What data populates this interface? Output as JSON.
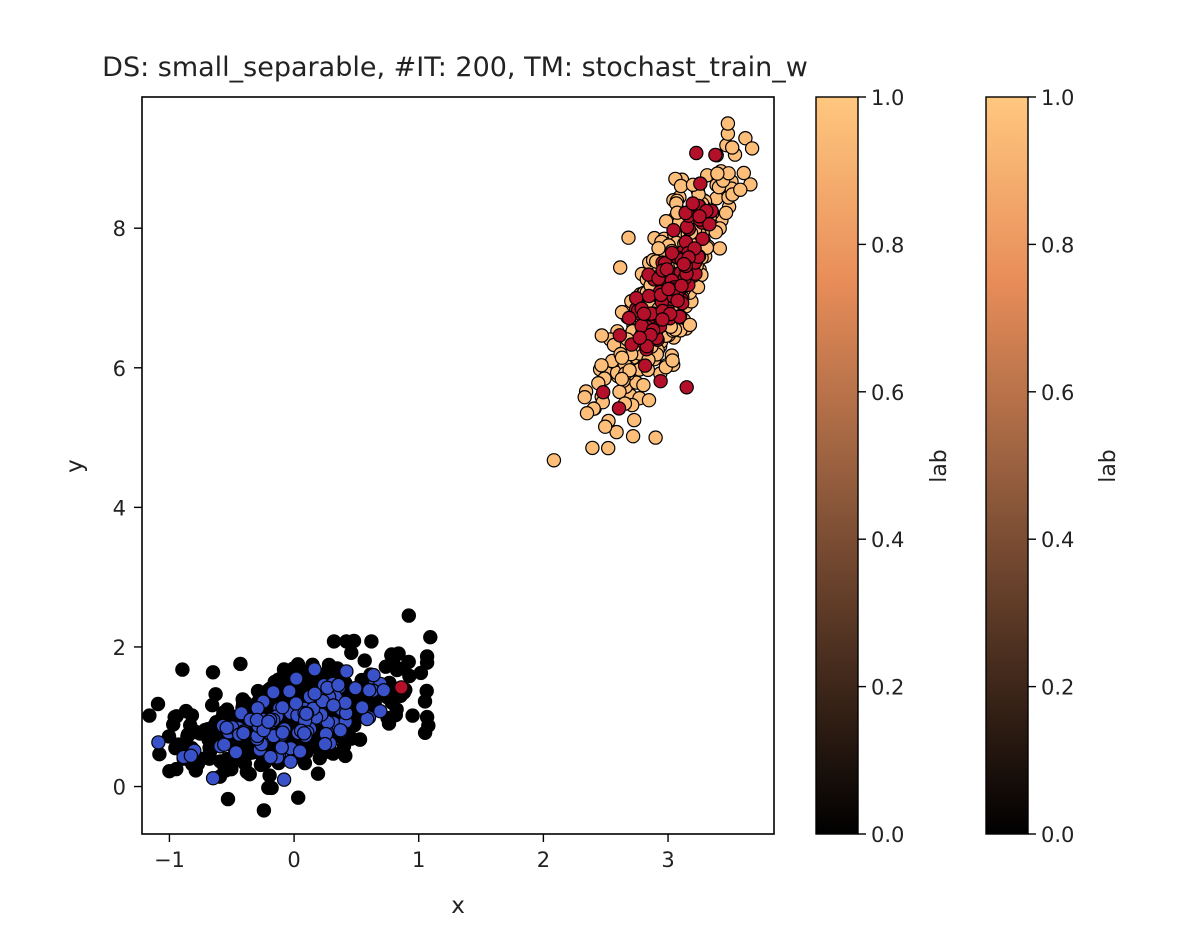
{
  "chart_data": {
    "type": "scatter",
    "title": "DS: small_separable, #IT: 200, TM: stochast_train_w",
    "xlabel": "x",
    "ylabel": "y",
    "xlim": [
      -1.22,
      3.85
    ],
    "ylim": [
      -0.68,
      9.88
    ],
    "xticks": [
      -1,
      0,
      1,
      2,
      3
    ],
    "yticks": [
      0,
      2,
      4,
      6,
      8
    ],
    "grid": false,
    "clusters": [
      {
        "role": "background",
        "color": "#000000",
        "center": [
          0.0,
          1.0
        ],
        "std": [
          0.42,
          0.38
        ],
        "corr": 0.55,
        "count": 520,
        "outliers": [
          [
            -1.0,
            0.22
          ],
          [
            -0.82,
            0.55
          ],
          [
            -0.82,
            1.02
          ],
          [
            -0.53,
            -0.18
          ],
          [
            -0.18,
            -0.02
          ],
          [
            0.92,
            2.45
          ],
          [
            1.05,
            1.22
          ],
          [
            0.78,
            1.88
          ],
          [
            0.62,
            2.08
          ],
          [
            0.42,
            2.08
          ],
          [
            0.32,
            2.08
          ],
          [
            0.75,
            0.98
          ]
        ]
      },
      {
        "role": "foreground",
        "color": "#3a52c9",
        "center": [
          0.0,
          0.98
        ],
        "std": [
          0.33,
          0.3
        ],
        "corr": 0.55,
        "count": 120,
        "outliers": [
          [
            -0.65,
            0.12
          ],
          [
            -0.08,
            0.1
          ],
          [
            0.72,
            1.38
          ]
        ]
      },
      {
        "role": "background",
        "color": "#fdbe7a",
        "center": [
          3.0,
          7.15
        ],
        "std": [
          0.25,
          0.82
        ],
        "corr": 0.82,
        "count": 430,
        "outliers": [
          [
            2.52,
            4.85
          ],
          [
            2.9,
            5.0
          ],
          [
            2.35,
            5.35
          ],
          [
            3.48,
            9.5
          ],
          [
            3.58,
            8.55
          ],
          [
            2.72,
            5.02
          ]
        ]
      },
      {
        "role": "foreground",
        "color": "#b5102a",
        "center": [
          3.0,
          7.15
        ],
        "std": [
          0.17,
          0.62
        ],
        "corr": 0.8,
        "count": 110,
        "outliers": [
          [
            3.15,
            5.72
          ],
          [
            3.38,
            9.05
          ],
          [
            0.86,
            1.42
          ],
          [
            2.48,
            5.65
          ]
        ]
      }
    ],
    "colorbars": [
      {
        "label": "lab",
        "range": [
          0.0,
          1.0
        ],
        "ticks": [
          "0.0",
          "0.2",
          "0.4",
          "0.6",
          "0.8",
          "1.0"
        ],
        "colormap": "copper",
        "stops": [
          "#000000",
          "#4d3020",
          "#9a6140",
          "#e88d59",
          "#ffc77f"
        ]
      },
      {
        "label": "lab",
        "range": [
          0.0,
          1.0
        ],
        "ticks": [
          "0.0",
          "0.2",
          "0.4",
          "0.6",
          "0.8",
          "1.0"
        ],
        "colormap": "copper",
        "stops": [
          "#000000",
          "#4d3020",
          "#9a6140",
          "#e88d59",
          "#ffc77f"
        ]
      }
    ]
  }
}
